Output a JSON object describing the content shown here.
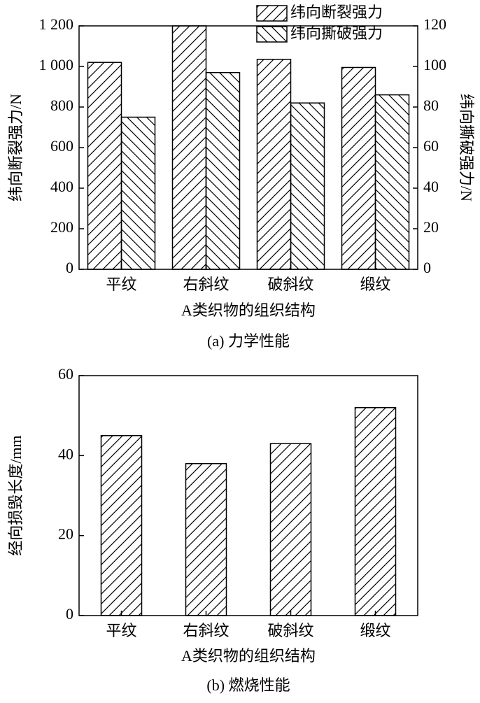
{
  "chart_data": [
    {
      "type": "bar",
      "categories": [
        "平纹",
        "右斜纹",
        "破斜纹",
        "缎纹"
      ],
      "series": [
        {
          "name": "纬向断裂强力",
          "color": "#000000",
          "values": [
            1020,
            1200,
            1035,
            995
          ]
        },
        {
          "name": "纬向撕破强力",
          "color": "#000000",
          "values": [
            75,
            97,
            82,
            86
          ],
          "axis": "y2"
        }
      ],
      "ylim": [
        0,
        1200
      ],
      "yticks": [
        0,
        200,
        400,
        600,
        800,
        {
          "value": 1000,
          "label": "1 000"
        },
        {
          "value": 1200,
          "label": "1 200"
        }
      ],
      "y2lim": [
        0,
        120
      ],
      "y2ticks": [
        0,
        20,
        40,
        60,
        80,
        100,
        120
      ],
      "y_label": "纬向断裂强力/N",
      "y2_label": "纬向撕破强力/N",
      "x_label": "A类织物的组织结构",
      "caption": "(a) 力学性能",
      "legend": "upper right"
    },
    {
      "type": "bar",
      "categories": [
        "平纹",
        "右斜纹",
        "破斜纹",
        "缎纹"
      ],
      "values": [
        45,
        38,
        43,
        52
      ],
      "color": "#000000",
      "ylim": [
        0,
        60
      ],
      "yticks": [
        0,
        20,
        40,
        60
      ],
      "y_label": "经向损毁长度/mm",
      "x_label": "A类织物的组织结构",
      "caption": "(b) 燃烧性能"
    }
  ]
}
